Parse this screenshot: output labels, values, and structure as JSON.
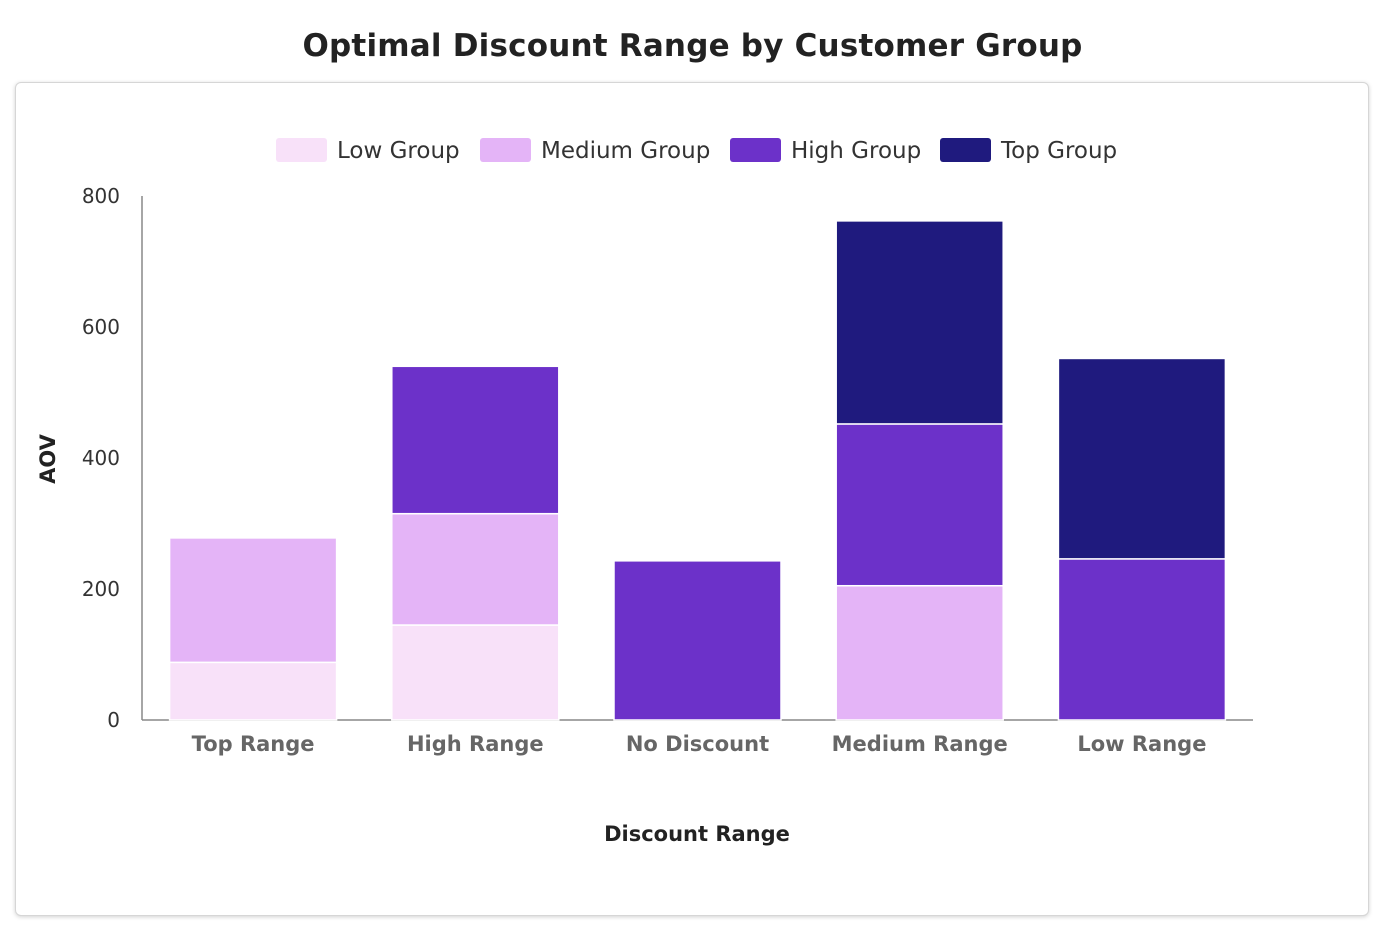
{
  "chart_data": {
    "type": "bar",
    "stacked": true,
    "title": "Optimal Discount Range by Customer Group",
    "xlabel": "Discount Range",
    "ylabel": "AOV",
    "ylim": [
      0,
      800
    ],
    "yticks": [
      0,
      200,
      400,
      600,
      800
    ],
    "categories": [
      "Top Range",
      "High Range",
      "No Discount",
      "Medium Range",
      "Low Range"
    ],
    "series": [
      {
        "name": "Low Group",
        "color": "#f8e1f9",
        "values": [
          88,
          145,
          0,
          0,
          0
        ]
      },
      {
        "name": "Medium Group",
        "color": "#e4b4f7",
        "values": [
          190,
          170,
          0,
          205,
          0
        ]
      },
      {
        "name": "High Group",
        "color": "#6c31c9",
        "values": [
          0,
          225,
          243,
          247,
          246
        ]
      },
      {
        "name": "Top Group",
        "color": "#1f1a7e",
        "values": [
          0,
          0,
          0,
          310,
          306
        ]
      }
    ],
    "legend_position": "top-center",
    "grid": false
  }
}
